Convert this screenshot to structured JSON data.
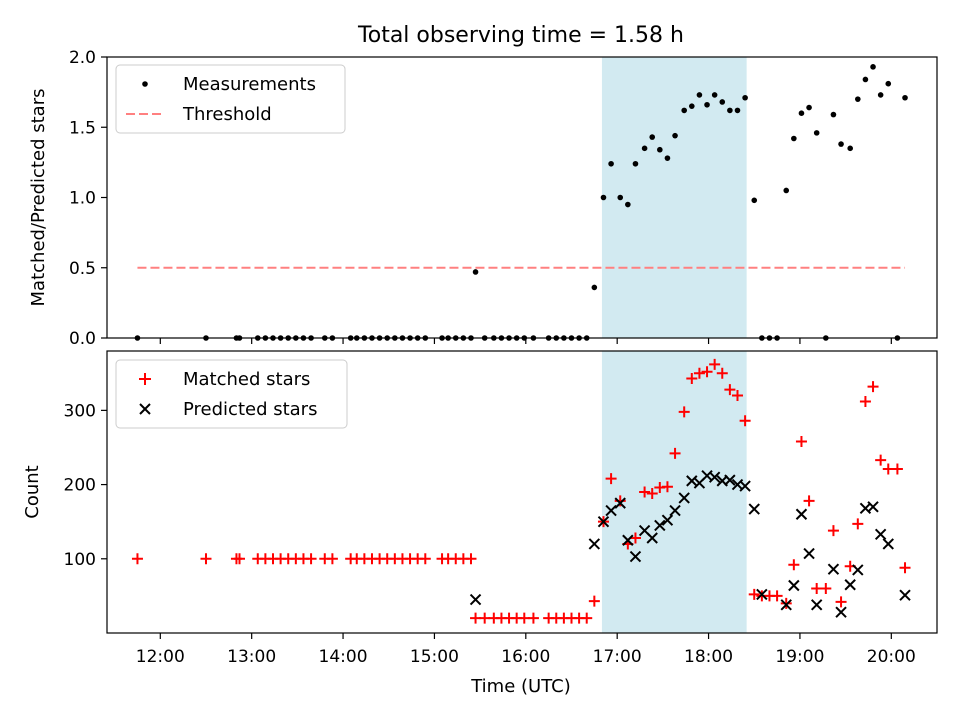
{
  "figure": {
    "title": "Total observing time = 1.58 h",
    "xlabel": "Time (UTC)",
    "highlight_color": "#add8e6",
    "highlight_span": [
      "16:50",
      "18:25"
    ]
  },
  "chart_data": [
    {
      "type": "scatter",
      "ylabel": "Matched/Predicted stars",
      "xlim": [
        "11:25",
        "20:30"
      ],
      "ylim": [
        0,
        2.0
      ],
      "yticks": [
        0.0,
        0.5,
        1.0,
        1.5,
        2.0
      ],
      "ytick_labels": [
        "0.0",
        "0.5",
        "1.0",
        "1.5",
        "2.0"
      ],
      "legend_position": "top-left",
      "series": [
        {
          "name": "Measurements",
          "marker": "dot",
          "color": "#000000",
          "points": [
            [
              "11:45",
              0
            ],
            [
              "12:30",
              0
            ],
            [
              "12:50",
              0
            ],
            [
              "12:52",
              0
            ],
            [
              "13:04",
              0
            ],
            [
              "13:09",
              0
            ],
            [
              "13:14",
              0
            ],
            [
              "13:19",
              0
            ],
            [
              "13:24",
              0
            ],
            [
              "13:29",
              0
            ],
            [
              "13:34",
              0
            ],
            [
              "13:39",
              0
            ],
            [
              "13:48",
              0
            ],
            [
              "13:53",
              0
            ],
            [
              "14:05",
              0
            ],
            [
              "14:09",
              0
            ],
            [
              "14:14",
              0
            ],
            [
              "14:19",
              0
            ],
            [
              "14:24",
              0
            ],
            [
              "14:29",
              0
            ],
            [
              "14:34",
              0
            ],
            [
              "14:39",
              0
            ],
            [
              "14:44",
              0
            ],
            [
              "14:49",
              0
            ],
            [
              "14:54",
              0
            ],
            [
              "15:05",
              0
            ],
            [
              "15:09",
              0
            ],
            [
              "15:14",
              0
            ],
            [
              "15:19",
              0
            ],
            [
              "15:24",
              0
            ],
            [
              "15:27",
              0.47
            ],
            [
              "15:33",
              0
            ],
            [
              "15:39",
              0
            ],
            [
              "15:44",
              0
            ],
            [
              "15:49",
              0
            ],
            [
              "15:54",
              0
            ],
            [
              "15:59",
              0
            ],
            [
              "16:05",
              0
            ],
            [
              "16:15",
              0
            ],
            [
              "16:20",
              0
            ],
            [
              "16:25",
              0
            ],
            [
              "16:30",
              0
            ],
            [
              "16:35",
              0
            ],
            [
              "16:40",
              0
            ],
            [
              "16:45",
              0.36
            ],
            [
              "16:51",
              1.0
            ],
            [
              "16:56",
              1.24
            ],
            [
              "17:02",
              1.0
            ],
            [
              "17:07",
              0.95
            ],
            [
              "17:12",
              1.24
            ],
            [
              "17:18",
              1.35
            ],
            [
              "17:23",
              1.43
            ],
            [
              "17:28",
              1.34
            ],
            [
              "17:33",
              1.28
            ],
            [
              "17:38",
              1.44
            ],
            [
              "17:44",
              1.62
            ],
            [
              "17:49",
              1.65
            ],
            [
              "17:54",
              1.73
            ],
            [
              "17:59",
              1.66
            ],
            [
              "18:04",
              1.73
            ],
            [
              "18:09",
              1.68
            ],
            [
              "18:14",
              1.62
            ],
            [
              "18:19",
              1.62
            ],
            [
              "18:24",
              1.71
            ],
            [
              "18:30",
              0.98
            ],
            [
              "18:35",
              0
            ],
            [
              "18:40",
              0
            ],
            [
              "18:45",
              0
            ],
            [
              "18:51",
              1.05
            ],
            [
              "18:56",
              1.42
            ],
            [
              "19:01",
              1.6
            ],
            [
              "19:06",
              1.64
            ],
            [
              "19:11",
              1.46
            ],
            [
              "19:17",
              0
            ],
            [
              "19:22",
              1.59
            ],
            [
              "19:27",
              1.38
            ],
            [
              "19:33",
              1.35
            ],
            [
              "19:38",
              1.7
            ],
            [
              "19:43",
              1.84
            ],
            [
              "19:48",
              1.93
            ],
            [
              "19:53",
              1.73
            ],
            [
              "19:58",
              1.81
            ],
            [
              "20:04",
              0
            ],
            [
              "20:09",
              1.71
            ]
          ]
        },
        {
          "name": "Threshold",
          "marker": "dashed-line",
          "color": "#ff8080",
          "points": [
            [
              "11:45",
              0.5
            ],
            [
              "20:09",
              0.5
            ]
          ]
        }
      ]
    },
    {
      "type": "scatter",
      "ylabel": "Count",
      "xlabel": "Time (UTC)",
      "xlim": [
        "11:25",
        "20:30"
      ],
      "ylim": [
        0,
        380
      ],
      "yticks": [
        100,
        200,
        300
      ],
      "ytick_labels": [
        "100",
        "200",
        "300"
      ],
      "xticks": [
        "12:00",
        "13:00",
        "14:00",
        "15:00",
        "16:00",
        "17:00",
        "18:00",
        "19:00",
        "20:00"
      ],
      "legend_position": "top-left",
      "series": [
        {
          "name": "Matched stars",
          "marker": "plus",
          "color": "#ff0000",
          "points": [
            [
              "11:45",
              100
            ],
            [
              "12:30",
              100
            ],
            [
              "12:50",
              100
            ],
            [
              "12:52",
              100
            ],
            [
              "13:04",
              100
            ],
            [
              "13:09",
              100
            ],
            [
              "13:14",
              100
            ],
            [
              "13:19",
              100
            ],
            [
              "13:24",
              100
            ],
            [
              "13:29",
              100
            ],
            [
              "13:34",
              100
            ],
            [
              "13:39",
              100
            ],
            [
              "13:48",
              100
            ],
            [
              "13:53",
              100
            ],
            [
              "14:05",
              100
            ],
            [
              "14:09",
              100
            ],
            [
              "14:14",
              100
            ],
            [
              "14:19",
              100
            ],
            [
              "14:24",
              100
            ],
            [
              "14:29",
              100
            ],
            [
              "14:34",
              100
            ],
            [
              "14:39",
              100
            ],
            [
              "14:44",
              100
            ],
            [
              "14:49",
              100
            ],
            [
              "14:54",
              100
            ],
            [
              "15:05",
              100
            ],
            [
              "15:09",
              100
            ],
            [
              "15:14",
              100
            ],
            [
              "15:19",
              100
            ],
            [
              "15:24",
              100
            ],
            [
              "15:27",
              20
            ],
            [
              "15:33",
              20
            ],
            [
              "15:39",
              20
            ],
            [
              "15:44",
              20
            ],
            [
              "15:49",
              20
            ],
            [
              "15:54",
              20
            ],
            [
              "15:59",
              20
            ],
            [
              "16:05",
              20
            ],
            [
              "16:15",
              20
            ],
            [
              "16:20",
              20
            ],
            [
              "16:25",
              20
            ],
            [
              "16:30",
              20
            ],
            [
              "16:35",
              20
            ],
            [
              "16:40",
              20
            ],
            [
              "16:45",
              43
            ],
            [
              "16:51",
              150
            ],
            [
              "16:56",
              208
            ],
            [
              "17:02",
              178
            ],
            [
              "17:07",
              120
            ],
            [
              "17:12",
              128
            ],
            [
              "17:18",
              190
            ],
            [
              "17:23",
              188
            ],
            [
              "17:28",
              196
            ],
            [
              "17:33",
              197
            ],
            [
              "17:38",
              242
            ],
            [
              "17:44",
              298
            ],
            [
              "17:49",
              343
            ],
            [
              "17:54",
              350
            ],
            [
              "17:59",
              352
            ],
            [
              "18:04",
              362
            ],
            [
              "18:09",
              350
            ],
            [
              "18:14",
              328
            ],
            [
              "18:19",
              320
            ],
            [
              "18:24",
              286
            ],
            [
              "18:30",
              52
            ],
            [
              "18:35",
              50
            ],
            [
              "18:40",
              50
            ],
            [
              "18:45",
              50
            ],
            [
              "18:51",
              40
            ],
            [
              "18:56",
              92
            ],
            [
              "19:01",
              258
            ],
            [
              "19:06",
              178
            ],
            [
              "19:11",
              60
            ],
            [
              "19:17",
              60
            ],
            [
              "19:22",
              138
            ],
            [
              "19:27",
              42
            ],
            [
              "19:33",
              90
            ],
            [
              "19:38",
              147
            ],
            [
              "19:43",
              312
            ],
            [
              "19:48",
              332
            ],
            [
              "19:53",
              233
            ],
            [
              "19:58",
              221
            ],
            [
              "20:04",
              221
            ],
            [
              "20:09",
              88
            ]
          ]
        },
        {
          "name": "Predicted stars",
          "marker": "x",
          "color": "#000000",
          "points": [
            [
              "15:27",
              45
            ],
            [
              "16:45",
              120
            ],
            [
              "16:51",
              150
            ],
            [
              "16:56",
              165
            ],
            [
              "17:02",
              175
            ],
            [
              "17:07",
              125
            ],
            [
              "17:12",
              103
            ],
            [
              "17:18",
              138
            ],
            [
              "17:23",
              128
            ],
            [
              "17:28",
              145
            ],
            [
              "17:33",
              152
            ],
            [
              "17:38",
              165
            ],
            [
              "17:44",
              182
            ],
            [
              "17:49",
              205
            ],
            [
              "17:54",
              202
            ],
            [
              "17:59",
              212
            ],
            [
              "18:04",
              210
            ],
            [
              "18:09",
              205
            ],
            [
              "18:14",
              206
            ],
            [
              "18:19",
              200
            ],
            [
              "18:24",
              198
            ],
            [
              "18:30",
              167
            ],
            [
              "18:35",
              52
            ],
            [
              "18:51",
              38
            ],
            [
              "18:56",
              64
            ],
            [
              "19:01",
              160
            ],
            [
              "19:06",
              107
            ],
            [
              "19:11",
              38
            ],
            [
              "19:22",
              86
            ],
            [
              "19:27",
              28
            ],
            [
              "19:33",
              65
            ],
            [
              "19:38",
              85
            ],
            [
              "19:43",
              168
            ],
            [
              "19:48",
              170
            ],
            [
              "19:53",
              133
            ],
            [
              "19:58",
              120
            ],
            [
              "20:09",
              51
            ]
          ]
        }
      ]
    }
  ]
}
